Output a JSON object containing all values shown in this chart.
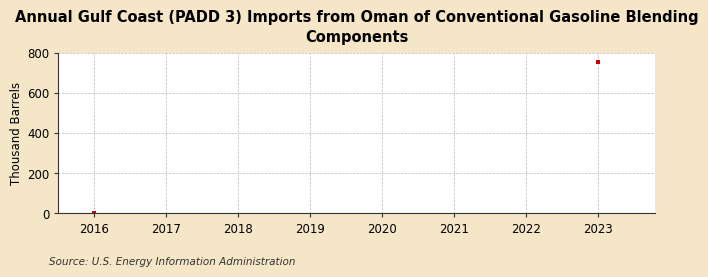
{
  "title": "Annual Gulf Coast (PADD 3) Imports from Oman of Conventional Gasoline Blending\nComponents",
  "ylabel": "Thousand Barrels",
  "source": "Source: U.S. Energy Information Administration",
  "figure_bg_color": "#f5e6c8",
  "plot_bg_color": "#ffffff",
  "x_values": [
    2016,
    2023
  ],
  "y_values": [
    4,
    755
  ],
  "x_min": 2015.5,
  "x_max": 2023.8,
  "y_min": 0,
  "y_max": 800,
  "y_ticks": [
    0,
    200,
    400,
    600,
    800
  ],
  "x_ticks": [
    2016,
    2017,
    2018,
    2019,
    2020,
    2021,
    2022,
    2023
  ],
  "marker_color": "#cc0000",
  "grid_color": "#bbbbbb",
  "spine_color": "#333333",
  "title_fontsize": 10.5,
  "label_fontsize": 8.5,
  "tick_fontsize": 8.5,
  "source_fontsize": 7.5
}
